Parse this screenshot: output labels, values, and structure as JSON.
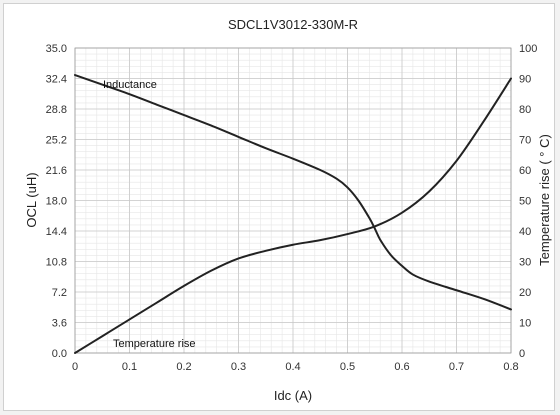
{
  "chart_data": {
    "type": "line",
    "title": "SDCL1V3012-330M-R",
    "xlabel": "Idc (A)",
    "ylabel_left": "OCL (uH)",
    "ylabel_right": "Temperature rise ( ° C)",
    "xlim": [
      0,
      0.8
    ],
    "ylim_left": [
      0,
      35.0
    ],
    "ylim_right": [
      0,
      100
    ],
    "x_ticks": [
      "0",
      "0.1",
      "0.2",
      "0.3",
      "0.4",
      "0.5",
      "0.6",
      "0.7",
      "0.8"
    ],
    "y_left_ticks": [
      "0.0",
      "3.6",
      "7.2",
      "10.8",
      "14.4",
      "18.0",
      "21.6",
      "25.2",
      "28.8",
      "32.4",
      "35.0"
    ],
    "y_right_ticks": [
      "0",
      "10",
      "20",
      "30",
      "40",
      "50",
      "60",
      "70",
      "80",
      "90",
      "100"
    ],
    "grid": true,
    "series": [
      {
        "name": "Inductance",
        "axis": "left",
        "x": [
          0,
          0.05,
          0.1,
          0.15,
          0.2,
          0.25,
          0.3,
          0.35,
          0.4,
          0.45,
          0.48,
          0.5,
          0.52,
          0.54,
          0.55,
          0.56,
          0.58,
          0.6,
          0.62,
          0.65,
          0.7,
          0.75,
          0.8
        ],
        "y": [
          31.9,
          30.8,
          29.7,
          28.5,
          27.3,
          26.1,
          24.8,
          23.5,
          22.3,
          21.0,
          20.0,
          19.0,
          17.5,
          15.5,
          14.3,
          13.0,
          11.2,
          10.0,
          9.0,
          8.2,
          7.2,
          6.2,
          5.0
        ]
      },
      {
        "name": "Temperature rise",
        "axis": "right",
        "x": [
          0,
          0.05,
          0.1,
          0.15,
          0.2,
          0.25,
          0.3,
          0.35,
          0.4,
          0.45,
          0.5,
          0.55,
          0.6,
          0.65,
          0.7,
          0.75,
          0.8
        ],
        "y": [
          0,
          5.5,
          11,
          16.5,
          22,
          27,
          31,
          33.5,
          35.5,
          37,
          39,
          41.5,
          46,
          53,
          63,
          76,
          90
        ]
      }
    ],
    "annotations": [
      "Inductance",
      "Temperature rise"
    ]
  }
}
